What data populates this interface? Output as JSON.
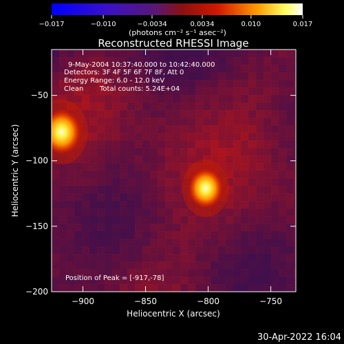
{
  "chart_data": {
    "type": "heatmap",
    "title": "Reconstructed RHESSI Image",
    "xlabel": "Heliocentric X (arcsec)",
    "ylabel": "Heliocentric Y (arcsec)",
    "xlim": [
      -925,
      -730
    ],
    "ylim": [
      -200,
      -15
    ],
    "xticks": [
      -900,
      -850,
      -800,
      -750
    ],
    "yticks": [
      -50,
      -100,
      -150,
      -200
    ],
    "xtick_labels": [
      "−900",
      "−850",
      "−800",
      "−750"
    ],
    "ytick_labels": [
      "−50",
      "−100",
      "−150",
      "−200"
    ],
    "colorbar": {
      "range": [
        -0.017,
        0.017
      ],
      "tick_labels": [
        "−0.017",
        "−0.010",
        "−0.0034",
        "0.0034",
        "0.010",
        "0.017"
      ],
      "tick_values": [
        -0.017,
        -0.01,
        -0.0034,
        0.0034,
        0.01,
        0.017
      ],
      "unit": "(photons cm⁻² s⁻¹ asec⁻²)",
      "colormap": "blue-purple-red-yellow-white"
    },
    "sources": [
      {
        "x": -917,
        "y": -78,
        "peak": 0.017,
        "radius": 9
      },
      {
        "x": -802,
        "y": -121,
        "peak": 0.015,
        "radius": 8
      }
    ],
    "annotations": {
      "time_range": "9-May-2004 10:37:40.000 to 10:42:40.000",
      "detectors": "Detectors: 3F 4F 5F 6F 7F 8F, Att 0",
      "energy_range": "Energy Range: 6.0 - 12.0 keV",
      "method": "Clean",
      "total_counts": "Total counts: 5.24E+04",
      "peak_position": "Position of Peak = [-917,-78]"
    }
  },
  "timestamp": "30-Apr-2022 16:04"
}
